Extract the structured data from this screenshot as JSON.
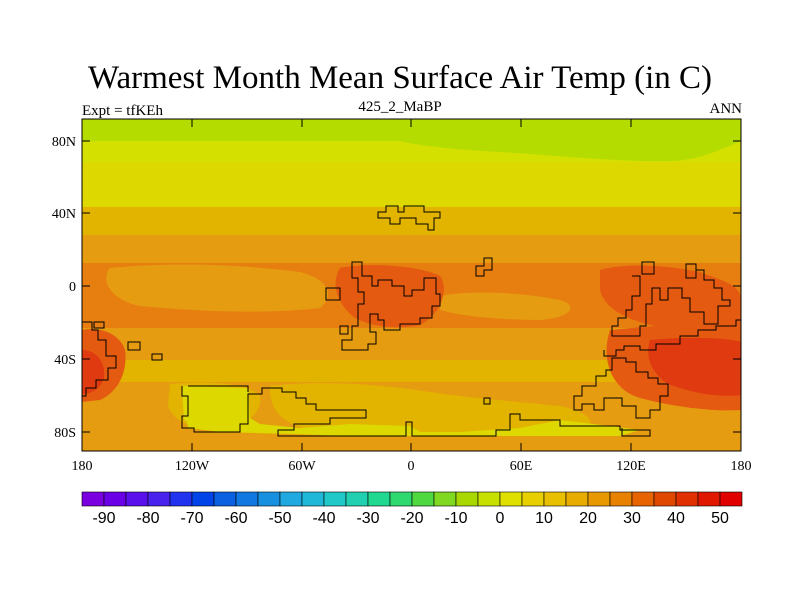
{
  "title": "Warmest Month Mean Surface Air Temp (in C)",
  "subtitle": "425_2_MaBP",
  "left_label": "Expt = tfKEh",
  "right_label": "ANN",
  "lat_ticks": [
    "80N",
    "40N",
    "0",
    "40S",
    "80S"
  ],
  "lon_ticks": [
    "180",
    "120W",
    "60W",
    "0",
    "60E",
    "120E",
    "180"
  ],
  "colorbar": {
    "labels": [
      "-90",
      "-80",
      "-70",
      "-60",
      "-50",
      "-40",
      "-30",
      "-20",
      "-10",
      "0",
      "10",
      "20",
      "30",
      "40",
      "50"
    ],
    "colors": [
      "#7a00e0",
      "#6a00e6",
      "#5a10ea",
      "#4a22ee",
      "#2233f0",
      "#0044e8",
      "#0a60e0",
      "#1078e0",
      "#1890e0",
      "#20a8e0",
      "#20b8d8",
      "#20c8c8",
      "#20d0b0",
      "#20d890",
      "#30d870",
      "#50d840",
      "#80d820",
      "#a8d800",
      "#c8e000",
      "#e0e000",
      "#e8d000",
      "#e8c000",
      "#e8ac00",
      "#e89800",
      "#e88000",
      "#e86400",
      "#e04800",
      "#e03000",
      "#e01800",
      "#e00000"
    ]
  },
  "colors": {
    "band_green": "#b4dc00",
    "yellow_green": "#d4e000",
    "yellow": "#dcd800",
    "light_orange": "#e2b400",
    "orange": "#e69c10",
    "dark_orange": "#e67e10",
    "red_orange": "#e45a10",
    "red": "#e03a10",
    "coastline": "#000000"
  }
}
